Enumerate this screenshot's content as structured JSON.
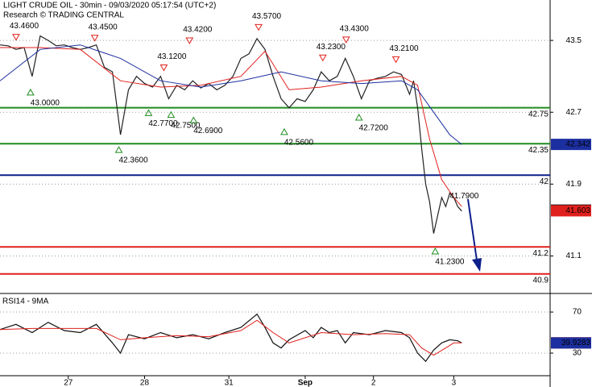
{
  "chart_data": [
    {
      "type": "line",
      "title": "LIGHT CRUDE OIL - 30min - 09/03/2020 05:17:54 (UTC+2)",
      "subtitle": "Research © TRADING CENTRAL",
      "xlim": [
        0,
        137
      ],
      "ylim": [
        40.7,
        43.95
      ],
      "yticks": [
        41.1,
        41.9,
        42.7,
        43.5
      ],
      "series": [
        {
          "color": "#222222",
          "x": [
            0,
            2,
            4,
            6,
            8,
            10,
            12,
            14,
            16,
            18,
            20,
            22,
            24,
            26,
            28,
            30,
            32,
            34,
            36,
            38,
            40,
            42,
            44,
            46,
            48,
            50,
            52,
            54,
            56,
            58,
            60,
            62,
            64,
            66,
            68,
            70,
            72,
            74,
            76,
            78,
            80,
            82,
            84,
            86,
            88,
            90,
            92,
            94,
            96,
            98,
            100,
            102,
            103,
            104,
            105,
            106,
            107,
            108,
            109,
            110,
            111,
            112,
            113,
            114,
            115
          ],
          "values": [
            43.45,
            43.44,
            43.4,
            43.42,
            43.1,
            43.55,
            43.5,
            43.44,
            43.45,
            43.42,
            43.4,
            43.42,
            43.45,
            43.2,
            43.15,
            42.45,
            42.95,
            43.1,
            43.02,
            42.98,
            43.1,
            42.85,
            43.0,
            42.95,
            43.05,
            42.97,
            43.02,
            42.95,
            43.0,
            43.1,
            43.3,
            43.35,
            43.52,
            43.4,
            43.1,
            42.85,
            42.75,
            42.85,
            42.82,
            42.95,
            43.15,
            43.05,
            43.1,
            43.3,
            43.1,
            42.85,
            43.05,
            43.08,
            43.1,
            43.15,
            43.12,
            42.9,
            43.05,
            42.75,
            42.3,
            41.9,
            41.7,
            41.35,
            41.55,
            41.75,
            41.65,
            41.8,
            41.75,
            41.65,
            41.6
          ]
        },
        {
          "color": "#e0201c",
          "x": [
            0,
            10,
            20,
            30,
            40,
            50,
            60,
            66,
            72,
            80,
            90,
            100,
            104,
            107,
            110,
            113,
            115
          ],
          "values": [
            43.42,
            43.42,
            43.4,
            43.05,
            42.98,
            43.0,
            43.1,
            43.38,
            42.95,
            42.98,
            43.05,
            43.1,
            43.0,
            42.4,
            41.95,
            41.75,
            41.65
          ]
        },
        {
          "color": "#1c2fa0",
          "x": [
            0,
            10,
            20,
            30,
            40,
            50,
            60,
            70,
            80,
            90,
            100,
            104,
            108,
            112,
            115
          ],
          "values": [
            43.05,
            43.4,
            43.45,
            43.3,
            43.05,
            42.98,
            43.05,
            43.15,
            43.05,
            43.02,
            43.05,
            42.95,
            42.7,
            42.45,
            42.34
          ]
        }
      ],
      "levels": [
        {
          "value": 42.75,
          "color": "#1e8c1e"
        },
        {
          "value": 42.35,
          "color": "#1e8c1e"
        },
        {
          "value": 42,
          "color": "#0c1f8a"
        },
        {
          "value": 41.2,
          "color": "#e0201c"
        },
        {
          "value": 40.9,
          "color": "#e0201c"
        }
      ],
      "annotations": [
        {
          "x": 4,
          "value": 43.46,
          "label": "43.4600",
          "marker": "down"
        },
        {
          "x": 7.6,
          "value": 43.0,
          "label": "43.0000",
          "marker": "up"
        },
        {
          "x": 23.6,
          "value": 43.45,
          "label": "43.4500",
          "marker": "down"
        },
        {
          "x": 29.6,
          "value": 42.36,
          "label": "42.3600",
          "marker": "up"
        },
        {
          "x": 37,
          "value": 42.77,
          "label": "42.7700",
          "marker": "up"
        },
        {
          "x": 40.8,
          "value": 43.12,
          "label": "43.1200",
          "marker": "down"
        },
        {
          "x": 42.6,
          "value": 42.75,
          "label": "42.7500",
          "marker": "up"
        },
        {
          "x": 47.2,
          "value": 43.42,
          "label": "43.4200",
          "marker": "down"
        },
        {
          "x": 48.2,
          "value": 42.69,
          "label": "42.6900",
          "marker": "up"
        },
        {
          "x": 64.4,
          "value": 43.57,
          "label": "43.5700",
          "marker": "down"
        },
        {
          "x": 70.8,
          "value": 42.56,
          "label": "42.5600",
          "marker": "up"
        },
        {
          "x": 80.4,
          "value": 43.23,
          "label": "43.2300",
          "marker": "down"
        },
        {
          "x": 86.2,
          "value": 43.43,
          "label": "43.4300",
          "marker": "down"
        },
        {
          "x": 89.4,
          "value": 42.72,
          "label": "42.7200",
          "marker": "up"
        },
        {
          "x": 98.6,
          "value": 43.21,
          "label": "43.2100",
          "marker": "down"
        },
        {
          "x": 108.4,
          "value": 41.23,
          "label": "41.2300",
          "marker": "up"
        },
        {
          "x": 115.6,
          "value": 41.79,
          "label": "41.7900",
          "marker": "none"
        }
      ],
      "price_boxes": [
        {
          "value": 42.342,
          "color": "#1c2fa0"
        },
        {
          "value": 41.61,
          "color": "#000000"
        },
        {
          "value": 41.603,
          "color": "#e0201c"
        }
      ]
    },
    {
      "type": "line",
      "title": "RSI14 - 9MA",
      "xlim": [
        0,
        137
      ],
      "ylim": [
        8.8,
        87.3
      ],
      "yticks": [
        30,
        70
      ],
      "xticks": [
        {
          "value": 17,
          "label": "27"
        },
        {
          "value": 36,
          "label": "28"
        },
        {
          "value": 57,
          "label": "31"
        },
        {
          "value": 76,
          "label": "Sep"
        },
        {
          "value": 93,
          "label": "2"
        },
        {
          "value": 113,
          "label": "3"
        }
      ],
      "series": [
        {
          "color": "#111111",
          "x": [
            0,
            4,
            8,
            12,
            16,
            20,
            24,
            28,
            30,
            32,
            36,
            40,
            44,
            48,
            52,
            56,
            60,
            64,
            66,
            68,
            70,
            72,
            76,
            78,
            80,
            82,
            84,
            86,
            88,
            92,
            96,
            100,
            102,
            104,
            106,
            108,
            110,
            112,
            114,
            115
          ],
          "values": [
            53,
            58,
            50,
            60,
            52,
            50,
            58,
            40,
            30,
            48,
            44,
            50,
            45,
            48,
            44,
            50,
            55,
            68,
            55,
            40,
            35,
            43,
            52,
            45,
            55,
            50,
            52,
            40,
            50,
            48,
            52,
            50,
            45,
            30,
            22,
            33,
            40,
            43,
            42,
            40
          ]
        },
        {
          "color": "#e0201c",
          "x": [
            0,
            8,
            16,
            24,
            30,
            36,
            44,
            52,
            60,
            64,
            68,
            72,
            76,
            80,
            88,
            96,
            102,
            105,
            108,
            111,
            113,
            115
          ],
          "values": [
            53,
            54,
            54,
            54,
            43,
            45,
            47,
            46,
            52,
            62,
            50,
            40,
            45,
            50,
            48,
            49,
            48,
            35,
            28,
            35,
            40,
            40
          ]
        }
      ],
      "price_boxes": [
        {
          "value": 40.029,
          "color": "#e0201c"
        },
        {
          "value": 39.9283,
          "color": "#1c2fa0"
        }
      ]
    }
  ]
}
